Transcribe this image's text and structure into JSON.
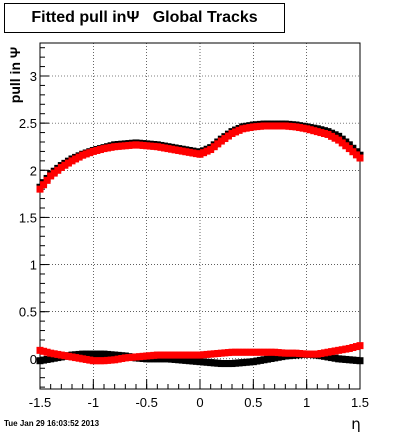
{
  "chart_data": {
    "type": "scatter",
    "title": "Fitted pull inΨ   Global Tracks",
    "xlabel": "η",
    "ylabel": "pull in  Ψ",
    "xlim": [
      -1.5,
      1.5
    ],
    "ylim": [
      -0.32,
      3.35
    ],
    "xticks": [
      -1.5,
      -1,
      -0.5,
      0,
      0.5,
      1,
      1.5
    ],
    "xtick_labels": [
      "-1.5",
      "-1",
      "-0.5",
      "0",
      "0.5",
      "1",
      "1.5"
    ],
    "yticks": [
      0,
      0.5,
      1,
      1.5,
      2,
      2.5,
      3
    ],
    "ytick_labels": [
      "0",
      "0.5",
      "1",
      "1.5",
      "2",
      "2.5",
      "3"
    ],
    "grid": true,
    "series": [
      {
        "color": "#000000",
        "x": [
          -1.5,
          -1.4,
          -1.3,
          -1.2,
          -1.1,
          -1.0,
          -0.9,
          -0.8,
          -0.7,
          -0.6,
          -0.5,
          -0.4,
          -0.3,
          -0.2,
          -0.1,
          0.0,
          0.1,
          0.2,
          0.3,
          0.4,
          0.5,
          0.6,
          0.7,
          0.8,
          0.9,
          1.0,
          1.1,
          1.2,
          1.3,
          1.4,
          1.5
        ],
        "y": [
          1.82,
          1.96,
          2.05,
          2.12,
          2.17,
          2.21,
          2.24,
          2.27,
          2.28,
          2.29,
          2.28,
          2.27,
          2.25,
          2.23,
          2.21,
          2.19,
          2.24,
          2.33,
          2.41,
          2.46,
          2.48,
          2.49,
          2.49,
          2.49,
          2.48,
          2.46,
          2.44,
          2.41,
          2.36,
          2.27,
          2.16
        ]
      },
      {
        "color": "#ff0000",
        "x": [
          -1.5,
          -1.4,
          -1.3,
          -1.2,
          -1.1,
          -1.0,
          -0.9,
          -0.8,
          -0.7,
          -0.6,
          -0.5,
          -0.4,
          -0.3,
          -0.2,
          -0.1,
          0.0,
          0.1,
          0.2,
          0.3,
          0.4,
          0.5,
          0.6,
          0.7,
          0.8,
          0.9,
          1.0,
          1.1,
          1.2,
          1.3,
          1.4,
          1.5
        ],
        "y": [
          1.8,
          1.94,
          2.03,
          2.1,
          2.16,
          2.2,
          2.23,
          2.25,
          2.26,
          2.27,
          2.26,
          2.25,
          2.23,
          2.21,
          2.19,
          2.17,
          2.22,
          2.31,
          2.39,
          2.44,
          2.46,
          2.47,
          2.47,
          2.47,
          2.46,
          2.44,
          2.41,
          2.38,
          2.32,
          2.23,
          2.13
        ]
      },
      {
        "color": "#000000",
        "x": [
          -1.5,
          -1.4,
          -1.3,
          -1.2,
          -1.1,
          -1.0,
          -0.9,
          -0.8,
          -0.7,
          -0.6,
          -0.5,
          -0.4,
          -0.3,
          -0.2,
          -0.1,
          0.0,
          0.1,
          0.2,
          0.3,
          0.4,
          0.5,
          0.6,
          0.7,
          0.8,
          0.9,
          1.0,
          1.1,
          1.2,
          1.3,
          1.4,
          1.5
        ],
        "y": [
          -0.02,
          0.0,
          0.02,
          0.04,
          0.05,
          0.05,
          0.05,
          0.04,
          0.03,
          0.01,
          0.0,
          0.0,
          0.0,
          -0.01,
          -0.02,
          -0.03,
          -0.04,
          -0.05,
          -0.05,
          -0.04,
          -0.03,
          -0.01,
          0.01,
          0.03,
          0.04,
          0.05,
          0.04,
          0.02,
          0.0,
          -0.01,
          -0.02
        ]
      },
      {
        "color": "#ff0000",
        "x": [
          -1.5,
          -1.4,
          -1.3,
          -1.2,
          -1.1,
          -1.0,
          -0.9,
          -0.8,
          -0.7,
          -0.6,
          -0.5,
          -0.4,
          -0.3,
          -0.2,
          -0.1,
          0.0,
          0.1,
          0.2,
          0.3,
          0.4,
          0.5,
          0.6,
          0.7,
          0.8,
          0.9,
          1.0,
          1.1,
          1.2,
          1.3,
          1.4,
          1.5
        ],
        "y": [
          0.09,
          0.06,
          0.04,
          0.02,
          0.0,
          -0.02,
          -0.02,
          -0.01,
          0.01,
          0.02,
          0.03,
          0.04,
          0.04,
          0.04,
          0.04,
          0.04,
          0.05,
          0.06,
          0.07,
          0.07,
          0.07,
          0.07,
          0.07,
          0.06,
          0.06,
          0.05,
          0.05,
          0.07,
          0.09,
          0.11,
          0.14
        ]
      }
    ]
  },
  "footer": {
    "timestamp": "Tue Jan 29 16:03:52 2013"
  }
}
